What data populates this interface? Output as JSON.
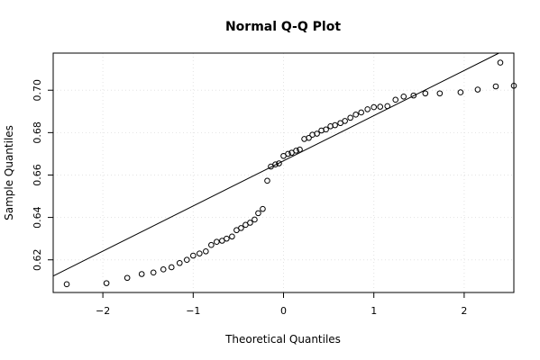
{
  "chart_data": {
    "type": "scatter",
    "title": "Normal Q-Q Plot",
    "xlabel": "Theoretical Quantiles",
    "ylabel": "Sample Quantiles",
    "xlim": [
      -2.55,
      2.55
    ],
    "ylim": [
      0.6046,
      0.7175
    ],
    "x_ticks": [
      -2,
      -1,
      0,
      1,
      2
    ],
    "x_tick_labels": [
      "−2",
      "−1",
      "0",
      "1",
      "2"
    ],
    "y_ticks": [
      0.62,
      0.64,
      0.66,
      0.68,
      0.7
    ],
    "y_tick_labels": [
      "0.62",
      "0.64",
      "0.66",
      "0.68",
      "0.70"
    ],
    "grid": true,
    "points": [
      {
        "x": -2.4,
        "y": 0.6085
      },
      {
        "x": -1.96,
        "y": 0.609
      },
      {
        "x": -1.73,
        "y": 0.6115
      },
      {
        "x": -1.57,
        "y": 0.6133
      },
      {
        "x": -1.44,
        "y": 0.614
      },
      {
        "x": -1.33,
        "y": 0.6155
      },
      {
        "x": -1.24,
        "y": 0.6165
      },
      {
        "x": -1.15,
        "y": 0.6185
      },
      {
        "x": -1.07,
        "y": 0.62
      },
      {
        "x": -1.0,
        "y": 0.622
      },
      {
        "x": -0.93,
        "y": 0.623
      },
      {
        "x": -0.86,
        "y": 0.624
      },
      {
        "x": -0.8,
        "y": 0.627
      },
      {
        "x": -0.74,
        "y": 0.6285
      },
      {
        "x": -0.68,
        "y": 0.629
      },
      {
        "x": -0.63,
        "y": 0.63
      },
      {
        "x": -0.57,
        "y": 0.631
      },
      {
        "x": -0.52,
        "y": 0.634
      },
      {
        "x": -0.47,
        "y": 0.635
      },
      {
        "x": -0.42,
        "y": 0.6365
      },
      {
        "x": -0.37,
        "y": 0.6375
      },
      {
        "x": -0.32,
        "y": 0.639
      },
      {
        "x": -0.28,
        "y": 0.642
      },
      {
        "x": -0.23,
        "y": 0.644
      },
      {
        "x": -0.18,
        "y": 0.6573
      },
      {
        "x": -0.14,
        "y": 0.664
      },
      {
        "x": -0.09,
        "y": 0.665
      },
      {
        "x": -0.05,
        "y": 0.6655
      },
      {
        "x": 0.0,
        "y": 0.669
      },
      {
        "x": 0.05,
        "y": 0.67
      },
      {
        "x": 0.09,
        "y": 0.6705
      },
      {
        "x": 0.14,
        "y": 0.6715
      },
      {
        "x": 0.18,
        "y": 0.672
      },
      {
        "x": 0.23,
        "y": 0.677
      },
      {
        "x": 0.28,
        "y": 0.6775
      },
      {
        "x": 0.32,
        "y": 0.679
      },
      {
        "x": 0.37,
        "y": 0.6795
      },
      {
        "x": 0.42,
        "y": 0.681
      },
      {
        "x": 0.47,
        "y": 0.6815
      },
      {
        "x": 0.52,
        "y": 0.683
      },
      {
        "x": 0.57,
        "y": 0.6835
      },
      {
        "x": 0.63,
        "y": 0.6845
      },
      {
        "x": 0.68,
        "y": 0.6855
      },
      {
        "x": 0.74,
        "y": 0.687
      },
      {
        "x": 0.8,
        "y": 0.6885
      },
      {
        "x": 0.86,
        "y": 0.6895
      },
      {
        "x": 0.93,
        "y": 0.691
      },
      {
        "x": 1.0,
        "y": 0.692
      },
      {
        "x": 1.07,
        "y": 0.6922
      },
      {
        "x": 1.15,
        "y": 0.6925
      },
      {
        "x": 1.24,
        "y": 0.6955
      },
      {
        "x": 1.33,
        "y": 0.697
      },
      {
        "x": 1.44,
        "y": 0.6975
      },
      {
        "x": 1.57,
        "y": 0.6985
      },
      {
        "x": 1.73,
        "y": 0.6985
      },
      {
        "x": 1.96,
        "y": 0.699
      },
      {
        "x": 2.15,
        "y": 0.7003
      },
      {
        "x": 2.35,
        "y": 0.7018
      },
      {
        "x": 2.55,
        "y": 0.7021
      },
      {
        "x": 2.4,
        "y": 0.713
      }
    ],
    "reference_line": {
      "intercept": 0.6667,
      "slope": 0.0213
    }
  }
}
